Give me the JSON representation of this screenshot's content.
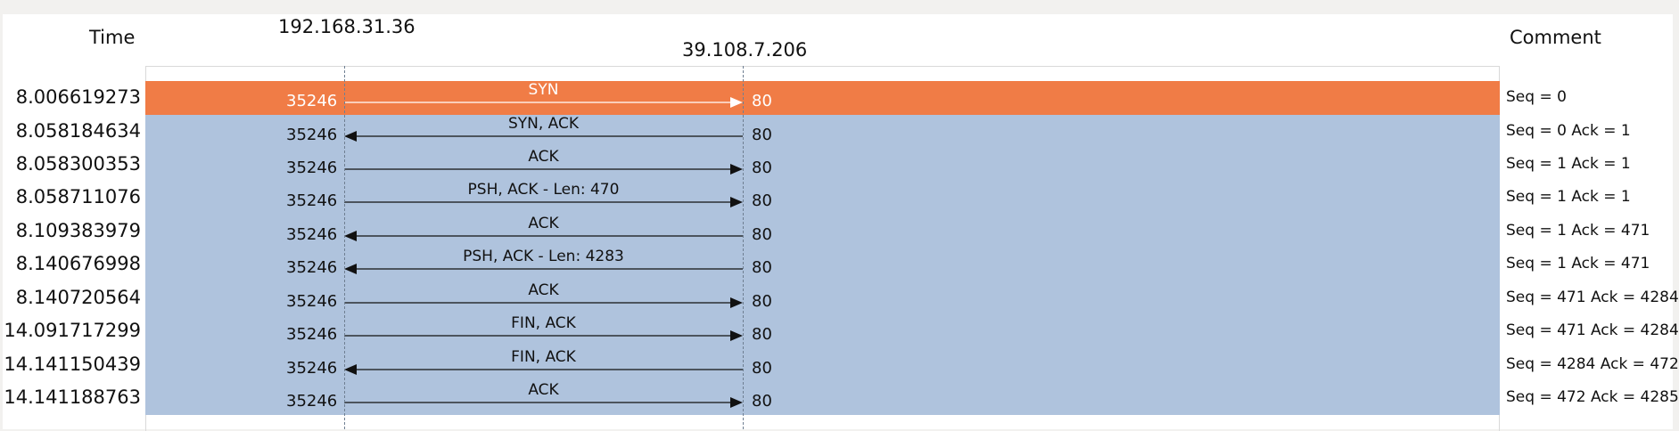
{
  "headers": {
    "time": "Time",
    "comment": "Comment",
    "host_a": "192.168.31.36",
    "host_b": "39.108.7.206"
  },
  "colors": {
    "selected_row": "#f07c46",
    "row": "#afc3dd"
  },
  "flows": [
    {
      "time": "8.006619273",
      "port_a": "35246",
      "label": "SYN",
      "port_b": "80",
      "direction": "right",
      "comment": "Seq = 0",
      "selected": true
    },
    {
      "time": "8.058184634",
      "port_a": "35246",
      "label": "SYN, ACK",
      "port_b": "80",
      "direction": "left",
      "comment": "Seq = 0 Ack = 1",
      "selected": false
    },
    {
      "time": "8.058300353",
      "port_a": "35246",
      "label": "ACK",
      "port_b": "80",
      "direction": "right",
      "comment": "Seq = 1 Ack = 1",
      "selected": false
    },
    {
      "time": "8.058711076",
      "port_a": "35246",
      "label": "PSH, ACK - Len: 470",
      "port_b": "80",
      "direction": "right",
      "comment": "Seq = 1 Ack = 1",
      "selected": false
    },
    {
      "time": "8.109383979",
      "port_a": "35246",
      "label": "ACK",
      "port_b": "80",
      "direction": "left",
      "comment": "Seq = 1 Ack = 471",
      "selected": false
    },
    {
      "time": "8.140676998",
      "port_a": "35246",
      "label": "PSH, ACK - Len: 4283",
      "port_b": "80",
      "direction": "left",
      "comment": "Seq = 1 Ack = 471",
      "selected": false
    },
    {
      "time": "8.140720564",
      "port_a": "35246",
      "label": "ACK",
      "port_b": "80",
      "direction": "right",
      "comment": "Seq = 471 Ack = 4284",
      "selected": false
    },
    {
      "time": "14.091717299",
      "port_a": "35246",
      "label": "FIN, ACK",
      "port_b": "80",
      "direction": "right",
      "comment": "Seq = 471 Ack = 4284",
      "selected": false
    },
    {
      "time": "14.141150439",
      "port_a": "35246",
      "label": "FIN, ACK",
      "port_b": "80",
      "direction": "left",
      "comment": "Seq = 4284 Ack = 472",
      "selected": false
    },
    {
      "time": "14.141188763",
      "port_a": "35246",
      "label": "ACK",
      "port_b": "80",
      "direction": "right",
      "comment": "Seq = 472 Ack = 4285",
      "selected": false
    }
  ]
}
